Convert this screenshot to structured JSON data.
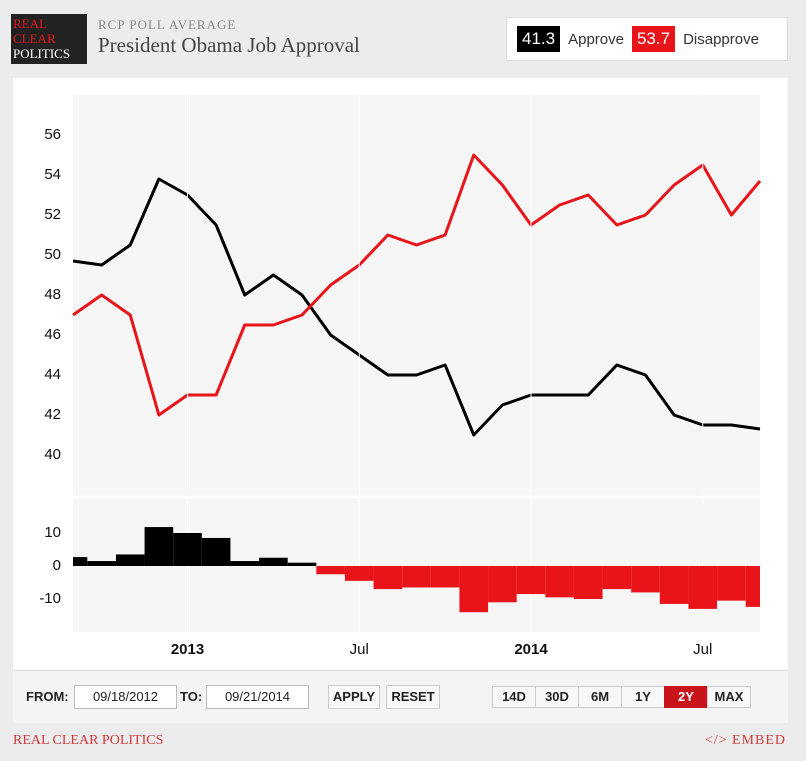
{
  "header": {
    "logo": [
      "REAL",
      "CLEAR",
      "POLITICS"
    ],
    "kicker": "RCP POLL AVERAGE",
    "title": "President Obama Job Approval"
  },
  "chart_data": [
    {
      "type": "line",
      "x": [
        "2012-09",
        "2012-10",
        "2012-11",
        "2012-12",
        "2013-01",
        "2013-02",
        "2013-03",
        "2013-04",
        "2013-05",
        "2013-06",
        "2013-07",
        "2013-08",
        "2013-09",
        "2013-10",
        "2013-11",
        "2013-12",
        "2014-01",
        "2014-02",
        "2014-03",
        "2014-04",
        "2014-05",
        "2014-06",
        "2014-07",
        "2014-08",
        "2014-09"
      ],
      "series": [
        {
          "name": "Approve",
          "color": "#000000",
          "current": 41.3,
          "values": [
            49.7,
            49.5,
            50.5,
            53.8,
            53,
            51.5,
            48,
            49,
            48,
            46,
            45,
            44,
            44,
            44.5,
            41,
            42.5,
            43,
            43,
            43,
            44.5,
            44,
            42,
            41.5,
            41.5,
            41.3
          ]
        },
        {
          "name": "Disapprove",
          "color": "#e8141a",
          "current": 53.7,
          "values": [
            47,
            48,
            47,
            42,
            43,
            43,
            46.5,
            46.5,
            47,
            48.5,
            49.5,
            51,
            50.5,
            51,
            55,
            53.5,
            51.5,
            52.5,
            53,
            51.5,
            52,
            53.5,
            54.5,
            52,
            53.7
          ]
        }
      ],
      "ylim": [
        38,
        58
      ],
      "yticks": [
        40,
        42,
        44,
        46,
        48,
        50,
        52,
        54,
        56
      ],
      "grid": false,
      "xticks": [
        {
          "value": "2013-01",
          "label": "2013"
        },
        {
          "value": "2013-07",
          "label": "Jul"
        },
        {
          "value": "2014-01",
          "label": "2014"
        },
        {
          "value": "2014-07",
          "label": "Jul"
        }
      ]
    },
    {
      "type": "bar",
      "x": [
        "2012-09",
        "2012-10",
        "2012-11",
        "2012-12",
        "2013-01",
        "2013-02",
        "2013-03",
        "2013-04",
        "2013-05",
        "2013-06",
        "2013-07",
        "2013-08",
        "2013-09",
        "2013-10",
        "2013-11",
        "2013-12",
        "2014-01",
        "2014-02",
        "2014-03",
        "2014-04",
        "2014-05",
        "2014-06",
        "2014-07",
        "2014-08",
        "2014-09"
      ],
      "values": [
        2.7,
        1.5,
        3.5,
        11.8,
        10,
        8.5,
        1.5,
        2.5,
        1,
        -2.5,
        -4.5,
        -7,
        -6.5,
        -6.5,
        -14,
        -11,
        -8.5,
        -9.5,
        -10,
        -7,
        -8,
        -11.5,
        -13,
        -10.5,
        -12.4
      ],
      "positive_color": "#000000",
      "negative_color": "#e8141a",
      "ylim": [
        -20,
        20
      ],
      "yticks": [
        -10,
        0,
        10
      ]
    }
  ],
  "controls": {
    "from_label": "FROM:",
    "from": "09/18/2012",
    "to_label": "TO:",
    "to": "09/21/2014",
    "apply": "APPLY",
    "reset": "RESET",
    "ranges": [
      "14D",
      "30D",
      "6M",
      "1Y",
      "2Y",
      "MAX"
    ],
    "active_range": 4
  },
  "footer": {
    "brand": "REAL CLEAR POLITICS",
    "embed": "</> EMBED"
  }
}
